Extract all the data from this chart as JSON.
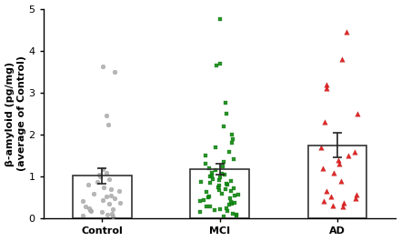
{
  "title": "",
  "ylabel": "β-amyloid (pg/mg)\n(average of Control)",
  "xlabel": "",
  "categories": [
    "Control",
    "MCI",
    "AD"
  ],
  "bar_means": [
    1.02,
    1.18,
    1.75
  ],
  "bar_errors": [
    0.18,
    0.13,
    0.3
  ],
  "bar_colors": [
    "#ffffff",
    "#ffffff",
    "#ffffff"
  ],
  "bar_edge_colors": [
    "#333333",
    "#333333",
    "#333333"
  ],
  "bar_width": 0.5,
  "ylim": [
    0,
    5
  ],
  "yticks": [
    0,
    1,
    2,
    3,
    4,
    5
  ],
  "control_dots": [
    0.05,
    0.08,
    0.1,
    0.12,
    0.15,
    0.18,
    0.2,
    0.22,
    0.25,
    0.3,
    0.35,
    0.38,
    0.42,
    0.45,
    0.48,
    0.52,
    0.55,
    0.6,
    0.65,
    0.7,
    0.75,
    0.8,
    0.88,
    0.95,
    1.0,
    1.05,
    1.1,
    1.18,
    2.25,
    2.45,
    3.5,
    3.62
  ],
  "mci_dots": [
    0.05,
    0.08,
    0.1,
    0.12,
    0.15,
    0.18,
    0.2,
    0.22,
    0.25,
    0.28,
    0.3,
    0.33,
    0.35,
    0.38,
    0.4,
    0.42,
    0.45,
    0.48,
    0.5,
    0.52,
    0.55,
    0.58,
    0.6,
    0.63,
    0.65,
    0.68,
    0.7,
    0.72,
    0.75,
    0.78,
    0.8,
    0.83,
    0.85,
    0.88,
    0.9,
    0.92,
    0.95,
    0.98,
    1.0,
    1.02,
    1.05,
    1.08,
    1.1,
    1.15,
    1.2,
    1.25,
    1.3,
    1.35,
    1.42,
    1.5,
    1.6,
    1.7,
    1.8,
    1.9,
    2.0,
    2.2,
    2.5,
    2.75,
    3.65,
    3.7,
    4.75
  ],
  "ad_dots": [
    0.28,
    0.32,
    0.38,
    0.42,
    0.48,
    0.52,
    0.58,
    0.65,
    0.9,
    1.1,
    1.2,
    1.3,
    1.4,
    1.5,
    1.6,
    1.7,
    2.3,
    2.5,
    3.1,
    3.2,
    3.8,
    4.45
  ],
  "dot_color_control": "#b0b0b0",
  "dot_color_mci": "#118811",
  "dot_color_ad": "#dd1111",
  "dot_size_control": 12,
  "dot_size_mci": 12,
  "dot_size_ad": 16,
  "background_color": "#ffffff",
  "font_size_labels": 8,
  "font_size_ticks": 8
}
